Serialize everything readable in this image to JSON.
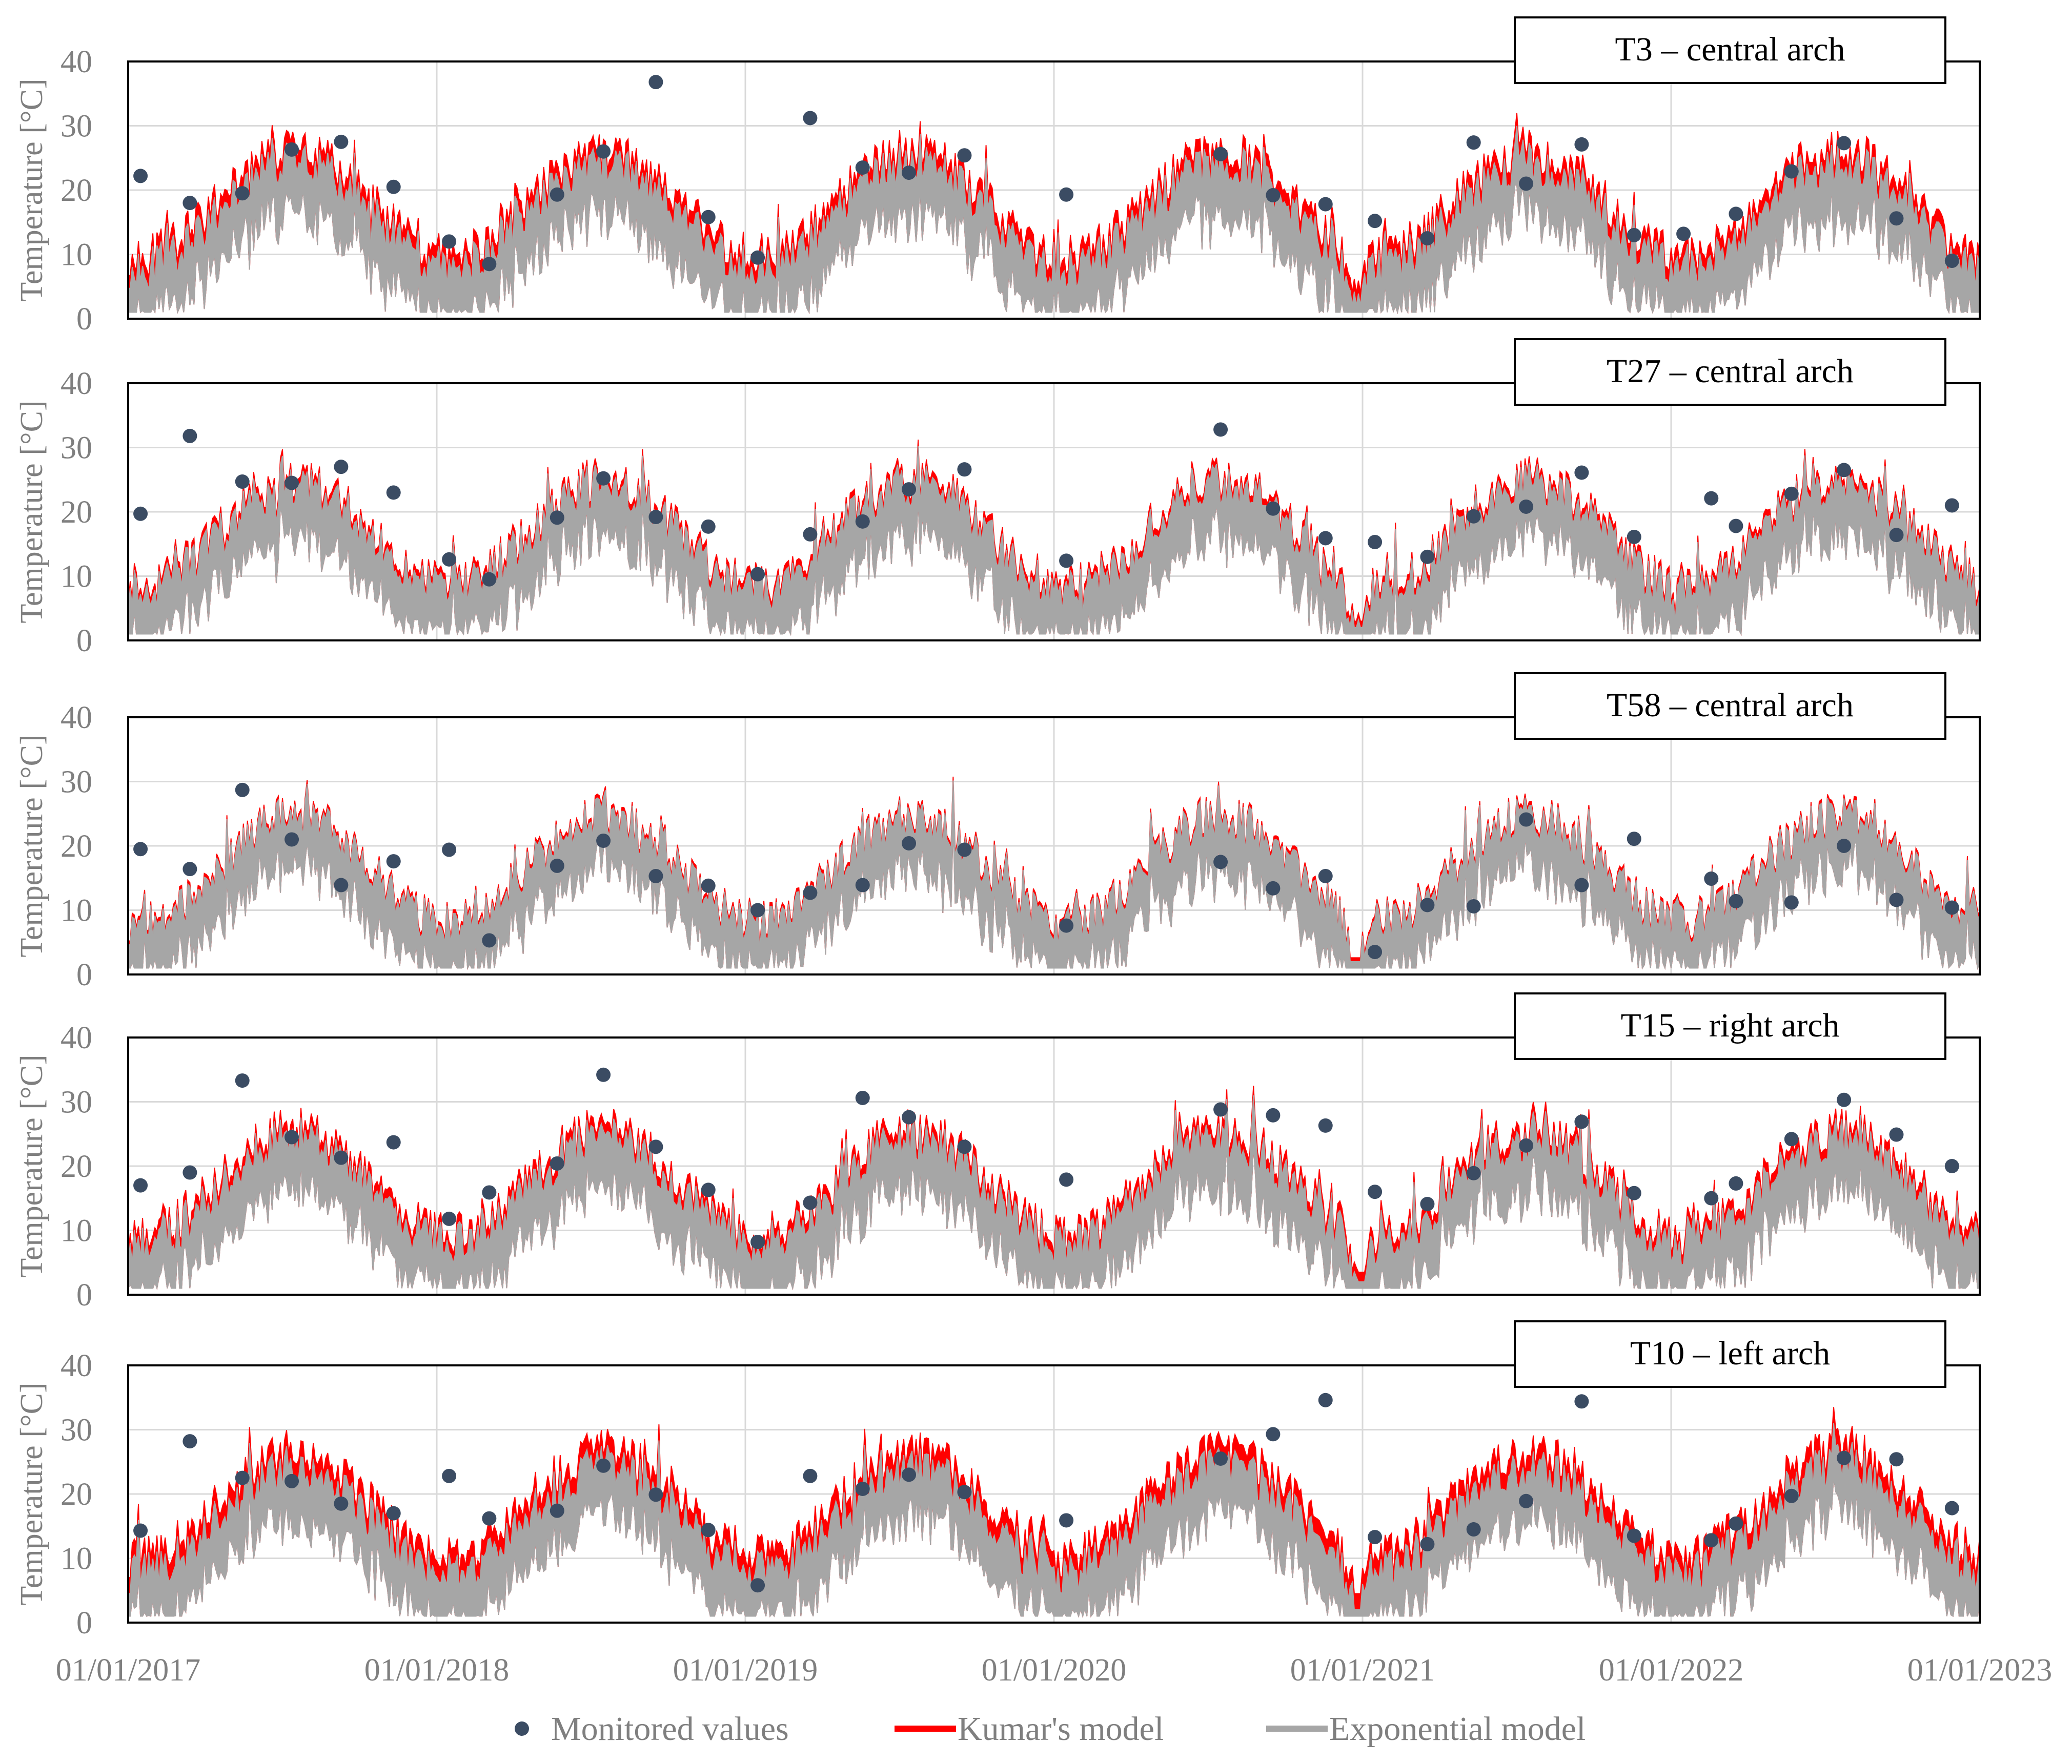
{
  "chart_data": {
    "type": "line",
    "x_tick_labels": [
      "01/01/2017",
      "01/01/2018",
      "01/01/2019",
      "01/01/2020",
      "01/01/2021",
      "01/01/2022",
      "01/01/2023"
    ],
    "x_range": [
      2017.0,
      2023.0
    ],
    "y_tick_labels": [
      "0",
      "10",
      "20",
      "30",
      "40"
    ],
    "ylim": [
      0,
      40
    ],
    "ylabel": "Temperature [°C]",
    "legend": {
      "position": "bottom-center",
      "entries": [
        "Monitored values",
        "Kumar's model",
        "Exponential model"
      ]
    },
    "colors": {
      "monitored": "#3b4c63",
      "kumar": "#ff0000",
      "exponential": "#a6a6a6",
      "frame": "#000000",
      "grid": "#d9d9d9"
    },
    "panels": [
      {
        "title": "T3 – central arch",
        "kumar_offset": 2.0,
        "monitored": [
          [
            2017.04,
            22.2
          ],
          [
            2017.2,
            18.0
          ],
          [
            2017.37,
            19.5
          ],
          [
            2017.53,
            26.3
          ],
          [
            2017.69,
            27.5
          ],
          [
            2017.86,
            20.5
          ],
          [
            2018.04,
            12.0
          ],
          [
            2018.17,
            8.5
          ],
          [
            2018.39,
            19.3
          ],
          [
            2018.54,
            26.0
          ],
          [
            2018.71,
            36.8
          ],
          [
            2018.88,
            15.8
          ],
          [
            2019.04,
            9.5
          ],
          [
            2019.21,
            31.2
          ],
          [
            2019.38,
            23.5
          ],
          [
            2019.53,
            22.7
          ],
          [
            2019.71,
            25.4
          ],
          [
            2020.04,
            19.3
          ],
          [
            2020.54,
            25.6
          ],
          [
            2020.71,
            19.2
          ],
          [
            2020.88,
            17.8
          ],
          [
            2021.04,
            15.2
          ],
          [
            2021.21,
            12.5
          ],
          [
            2021.36,
            27.4
          ],
          [
            2021.53,
            21.0
          ],
          [
            2021.71,
            27.1
          ],
          [
            2021.88,
            13.0
          ],
          [
            2022.04,
            13.2
          ],
          [
            2022.21,
            16.3
          ],
          [
            2022.39,
            22.9
          ],
          [
            2022.56,
            27.3
          ],
          [
            2022.73,
            15.6
          ],
          [
            2022.91,
            9.0
          ]
        ]
      },
      {
        "title": "T27 – central arch",
        "kumar_offset": 1.0,
        "monitored": [
          [
            2017.04,
            19.7
          ],
          [
            2017.2,
            31.8
          ],
          [
            2017.37,
            24.7
          ],
          [
            2017.53,
            24.5
          ],
          [
            2017.69,
            27.0
          ],
          [
            2017.86,
            23.0
          ],
          [
            2018.04,
            12.6
          ],
          [
            2018.17,
            9.5
          ],
          [
            2018.39,
            19.1
          ],
          [
            2018.54,
            25.2
          ],
          [
            2018.71,
            19.2
          ],
          [
            2018.88,
            17.7
          ],
          [
            2019.04,
            10.3
          ],
          [
            2019.21,
            16.5
          ],
          [
            2019.38,
            18.5
          ],
          [
            2019.53,
            23.5
          ],
          [
            2019.71,
            26.6
          ],
          [
            2020.04,
            12.4
          ],
          [
            2020.54,
            32.8
          ],
          [
            2020.71,
            20.5
          ],
          [
            2020.88,
            15.9
          ],
          [
            2021.04,
            15.3
          ],
          [
            2021.21,
            13.0
          ],
          [
            2021.36,
            19.3
          ],
          [
            2021.53,
            20.8
          ],
          [
            2021.71,
            26.1
          ],
          [
            2021.88,
            16.1
          ],
          [
            2022.13,
            22.1
          ],
          [
            2022.21,
            17.8
          ],
          [
            2022.39,
            22.8
          ],
          [
            2022.56,
            26.5
          ],
          [
            2022.73,
            16.4
          ],
          [
            2022.91,
            21.0
          ]
        ]
      },
      {
        "title": "T58 – central arch",
        "kumar_offset": 0.6,
        "monitored": [
          [
            2017.04,
            19.5
          ],
          [
            2017.2,
            16.4
          ],
          [
            2017.37,
            28.7
          ],
          [
            2017.53,
            21.0
          ],
          [
            2017.69,
            13.9
          ],
          [
            2017.86,
            17.6
          ],
          [
            2018.04,
            19.4
          ],
          [
            2018.17,
            5.3
          ],
          [
            2018.39,
            16.9
          ],
          [
            2018.54,
            20.8
          ],
          [
            2018.71,
            15.3
          ],
          [
            2018.88,
            13.8
          ],
          [
            2019.04,
            10.0
          ],
          [
            2019.21,
            12.7
          ],
          [
            2019.38,
            13.9
          ],
          [
            2019.53,
            20.4
          ],
          [
            2019.71,
            19.4
          ],
          [
            2020.04,
            7.6
          ],
          [
            2020.54,
            17.5
          ],
          [
            2020.71,
            13.4
          ],
          [
            2020.88,
            15.3
          ],
          [
            2021.04,
            3.5
          ],
          [
            2021.21,
            10.8
          ],
          [
            2021.36,
            10.6
          ],
          [
            2021.53,
            24.1
          ],
          [
            2021.71,
            13.9
          ],
          [
            2021.88,
            21.1
          ],
          [
            2022.13,
            14.9
          ],
          [
            2022.21,
            11.4
          ],
          [
            2022.39,
            11.2
          ],
          [
            2022.56,
            20.0
          ],
          [
            2022.73,
            11.6
          ],
          [
            2022.91,
            10.4
          ]
        ]
      },
      {
        "title": "T15 – right arch",
        "kumar_offset": 1.5,
        "monitored": [
          [
            2017.04,
            17.0
          ],
          [
            2017.2,
            19.0
          ],
          [
            2017.37,
            33.3
          ],
          [
            2017.53,
            24.5
          ],
          [
            2017.69,
            21.3
          ],
          [
            2017.86,
            23.7
          ],
          [
            2018.04,
            11.8
          ],
          [
            2018.17,
            15.9
          ],
          [
            2018.39,
            20.4
          ],
          [
            2018.54,
            34.2
          ],
          [
            2018.71,
            23.0
          ],
          [
            2018.88,
            16.3
          ],
          [
            2019.04,
            8.2
          ],
          [
            2019.21,
            14.3
          ],
          [
            2019.38,
            30.6
          ],
          [
            2019.53,
            27.6
          ],
          [
            2019.71,
            23.0
          ],
          [
            2020.04,
            17.9
          ],
          [
            2020.54,
            28.8
          ],
          [
            2020.71,
            27.9
          ],
          [
            2020.88,
            26.3
          ],
          [
            2021.04,
            16.0
          ],
          [
            2021.21,
            14.1
          ],
          [
            2021.36,
            18.9
          ],
          [
            2021.53,
            23.2
          ],
          [
            2021.71,
            26.9
          ],
          [
            2021.88,
            15.8
          ],
          [
            2022.13,
            15.0
          ],
          [
            2022.21,
            17.3
          ],
          [
            2022.39,
            24.2
          ],
          [
            2022.56,
            30.3
          ],
          [
            2022.73,
            24.9
          ],
          [
            2022.91,
            20.0
          ]
        ]
      },
      {
        "title": "T10 – left arch",
        "kumar_offset": 2.5,
        "monitored": [
          [
            2017.04,
            14.3
          ],
          [
            2017.2,
            28.2
          ],
          [
            2017.37,
            22.5
          ],
          [
            2017.53,
            22.0
          ],
          [
            2017.69,
            18.5
          ],
          [
            2017.86,
            17.0
          ],
          [
            2018.04,
            22.8
          ],
          [
            2018.17,
            16.2
          ],
          [
            2018.39,
            17.4
          ],
          [
            2018.54,
            24.4
          ],
          [
            2018.71,
            19.9
          ],
          [
            2018.88,
            14.4
          ],
          [
            2019.04,
            5.8
          ],
          [
            2019.21,
            22.8
          ],
          [
            2019.38,
            20.8
          ],
          [
            2019.53,
            23.0
          ],
          [
            2019.71,
            20.3
          ],
          [
            2020.04,
            15.9
          ],
          [
            2020.54,
            25.5
          ],
          [
            2020.71,
            29.3
          ],
          [
            2020.88,
            34.6
          ],
          [
            2021.04,
            13.3
          ],
          [
            2021.21,
            12.2
          ],
          [
            2021.36,
            14.5
          ],
          [
            2021.53,
            18.9
          ],
          [
            2021.71,
            34.4
          ],
          [
            2021.88,
            13.5
          ],
          [
            2022.13,
            12.8
          ],
          [
            2022.21,
            15.4
          ],
          [
            2022.39,
            19.7
          ],
          [
            2022.56,
            25.6
          ],
          [
            2022.73,
            25.4
          ],
          [
            2022.91,
            17.8
          ]
        ]
      }
    ]
  }
}
